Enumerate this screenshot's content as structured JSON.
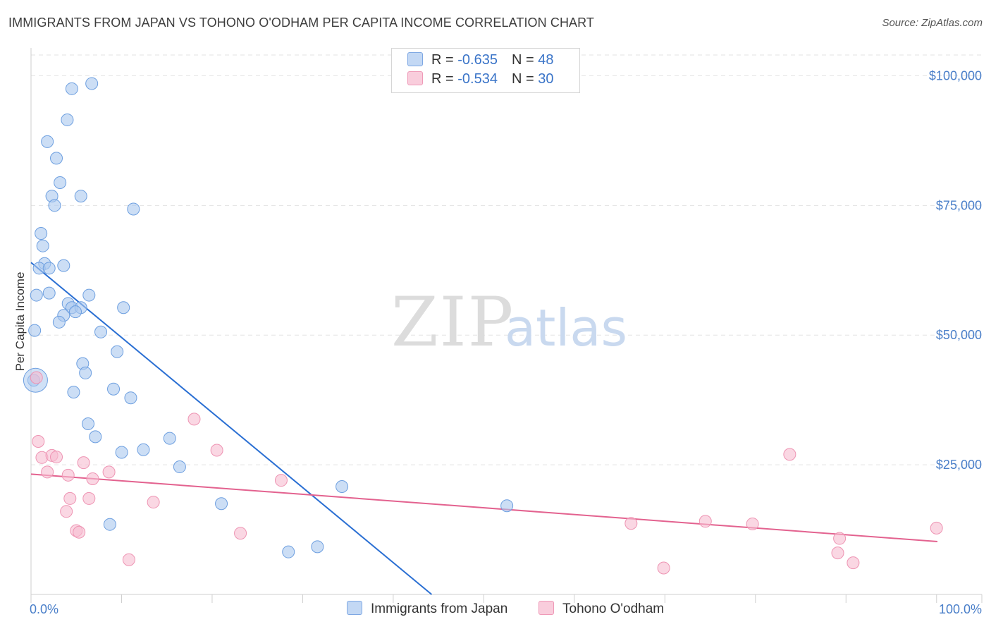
{
  "title": "IMMIGRANTS FROM JAPAN VS TOHONO O'ODHAM PER CAPITA INCOME CORRELATION CHART",
  "source": "Source: ZipAtlas.com",
  "watermark": {
    "zip": "ZIP",
    "atlas": "atlas"
  },
  "legend_top": {
    "series1": {
      "r_label": "R = ",
      "r_value": "-0.635",
      "n_label": "N = ",
      "n_value": "48"
    },
    "series2": {
      "r_label": "R = ",
      "r_value": "-0.534",
      "n_label": "N = ",
      "n_value": "30"
    }
  },
  "legend_bottom": {
    "series1": "Immigrants from Japan",
    "series2": "Tohono O'odham"
  },
  "colors": {
    "blue_fill": "#aac8ee",
    "blue_stroke": "#6d9fe0",
    "blue_line": "#2a6fd3",
    "pink_fill": "#f6bcd0",
    "pink_stroke": "#ee94b3",
    "pink_line": "#e3628f",
    "grid": "#e3e3e3",
    "tick_text": "#4a7fc9"
  },
  "chart_data": {
    "type": "scatter",
    "title": "IMMIGRANTS FROM JAPAN VS TOHONO O'ODHAM PER CAPITA INCOME CORRELATION CHART",
    "xlabel": "",
    "ylabel": "Per Capita Income",
    "xlim": [
      0,
      100
    ],
    "ylim": [
      0,
      104000
    ],
    "x_tick_labels": [
      "0.0%",
      "100.0%"
    ],
    "y_ticks": [
      {
        "value": 25000,
        "label": "$25,000"
      },
      {
        "value": 50000,
        "label": "$50,000"
      },
      {
        "value": 75000,
        "label": "$75,000"
      },
      {
        "value": 100000,
        "label": "$100,000"
      }
    ],
    "series": [
      {
        "name": "Immigrants from Japan",
        "r": -0.635,
        "n": 48,
        "trend": {
          "x": [
            0,
            44.2
          ],
          "y": [
            64000,
            0
          ]
        },
        "points": [
          {
            "x": 6.7,
            "y": 98500
          },
          {
            "x": 4.5,
            "y": 97500
          },
          {
            "x": 4.0,
            "y": 91500
          },
          {
            "x": 1.8,
            "y": 87300
          },
          {
            "x": 2.8,
            "y": 84100
          },
          {
            "x": 3.2,
            "y": 79400
          },
          {
            "x": 2.3,
            "y": 76800
          },
          {
            "x": 5.5,
            "y": 76800
          },
          {
            "x": 2.6,
            "y": 75000
          },
          {
            "x": 11.3,
            "y": 74300
          },
          {
            "x": 1.1,
            "y": 69600
          },
          {
            "x": 1.3,
            "y": 67200
          },
          {
            "x": 1.5,
            "y": 63800
          },
          {
            "x": 3.6,
            "y": 63400
          },
          {
            "x": 0.9,
            "y": 62900
          },
          {
            "x": 2.0,
            "y": 62900
          },
          {
            "x": 0.6,
            "y": 57700
          },
          {
            "x": 2.0,
            "y": 58100
          },
          {
            "x": 6.4,
            "y": 57700
          },
          {
            "x": 4.1,
            "y": 56100
          },
          {
            "x": 4.5,
            "y": 55300
          },
          {
            "x": 5.5,
            "y": 55300
          },
          {
            "x": 10.2,
            "y": 55300
          },
          {
            "x": 4.9,
            "y": 54500
          },
          {
            "x": 3.6,
            "y": 53800
          },
          {
            "x": 3.1,
            "y": 52500
          },
          {
            "x": 0.4,
            "y": 50900
          },
          {
            "x": 7.7,
            "y": 50600
          },
          {
            "x": 9.5,
            "y": 46800
          },
          {
            "x": 0.3,
            "y": 41300
          },
          {
            "x": 5.7,
            "y": 44500
          },
          {
            "x": 6.0,
            "y": 42700
          },
          {
            "x": 4.7,
            "y": 39000
          },
          {
            "x": 9.1,
            "y": 39600
          },
          {
            "x": 11.0,
            "y": 37900
          },
          {
            "x": 6.3,
            "y": 32900
          },
          {
            "x": 7.1,
            "y": 30400
          },
          {
            "x": 15.3,
            "y": 30100
          },
          {
            "x": 10.0,
            "y": 27400
          },
          {
            "x": 12.4,
            "y": 27900
          },
          {
            "x": 16.4,
            "y": 24600
          },
          {
            "x": 34.3,
            "y": 20800
          },
          {
            "x": 21.0,
            "y": 17500
          },
          {
            "x": 52.5,
            "y": 17100
          },
          {
            "x": 8.7,
            "y": 13500
          },
          {
            "x": 31.6,
            "y": 9200
          },
          {
            "x": 28.4,
            "y": 8200
          },
          {
            "x": 0.5,
            "y": 41300
          }
        ]
      },
      {
        "name": "Tohono O'odham",
        "r": -0.534,
        "n": 30,
        "trend": {
          "x": [
            0,
            100
          ],
          "y": [
            23200,
            10200
          ]
        },
        "points": [
          {
            "x": 0.6,
            "y": 41800
          },
          {
            "x": 18.0,
            "y": 33800
          },
          {
            "x": 0.8,
            "y": 29500
          },
          {
            "x": 20.5,
            "y": 27800
          },
          {
            "x": 83.7,
            "y": 27000
          },
          {
            "x": 1.2,
            "y": 26400
          },
          {
            "x": 2.3,
            "y": 26800
          },
          {
            "x": 2.8,
            "y": 26500
          },
          {
            "x": 5.8,
            "y": 25400
          },
          {
            "x": 1.8,
            "y": 23600
          },
          {
            "x": 4.1,
            "y": 23000
          },
          {
            "x": 8.6,
            "y": 23600
          },
          {
            "x": 6.8,
            "y": 22300
          },
          {
            "x": 27.6,
            "y": 22000
          },
          {
            "x": 4.3,
            "y": 18500
          },
          {
            "x": 6.4,
            "y": 18500
          },
          {
            "x": 13.5,
            "y": 17800
          },
          {
            "x": 3.9,
            "y": 16000
          },
          {
            "x": 5.0,
            "y": 12300
          },
          {
            "x": 5.3,
            "y": 12000
          },
          {
            "x": 23.1,
            "y": 11800
          },
          {
            "x": 66.2,
            "y": 13700
          },
          {
            "x": 74.4,
            "y": 14100
          },
          {
            "x": 79.6,
            "y": 13600
          },
          {
            "x": 99.9,
            "y": 12800
          },
          {
            "x": 89.2,
            "y": 10800
          },
          {
            "x": 10.8,
            "y": 6700
          },
          {
            "x": 89.0,
            "y": 8000
          },
          {
            "x": 90.7,
            "y": 6100
          },
          {
            "x": 69.8,
            "y": 5100
          }
        ]
      }
    ]
  }
}
